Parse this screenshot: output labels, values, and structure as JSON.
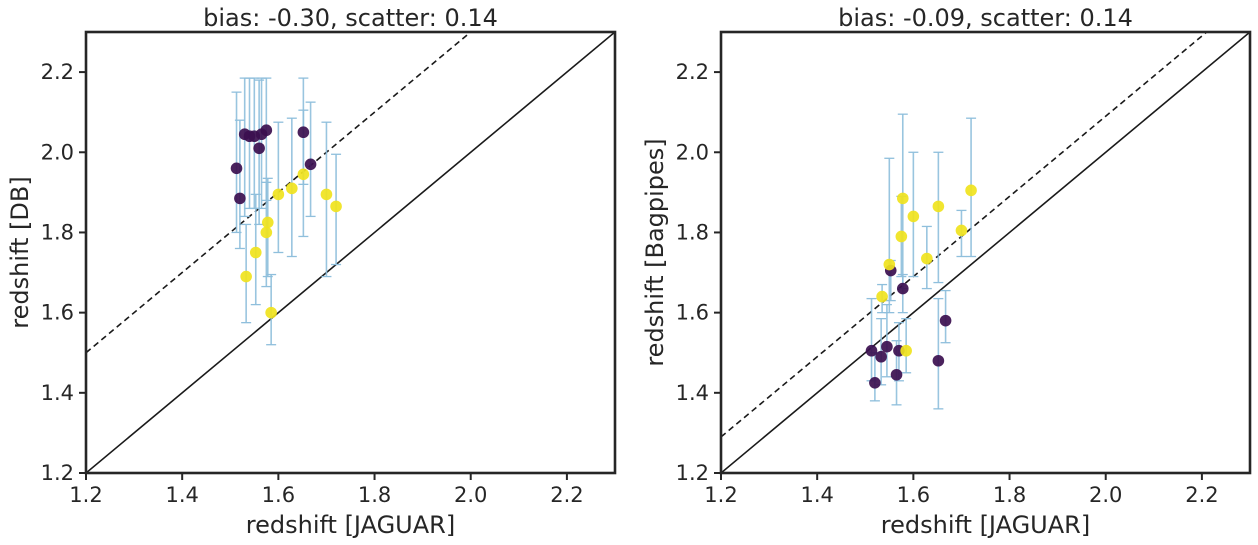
{
  "chart_data": [
    {
      "type": "scatter",
      "title": "bias: -0.30, scatter: 0.14",
      "xlabel": "redshift [JAGUAR]",
      "ylabel": "redshift [DB]",
      "xlim": [
        1.2,
        2.3
      ],
      "ylim": [
        1.2,
        2.3
      ],
      "xticks": [
        "1.2",
        "1.4",
        "1.6",
        "1.8",
        "2.0",
        "2.2"
      ],
      "yticks": [
        "1.2",
        "1.4",
        "1.6",
        "1.8",
        "2.0",
        "2.2"
      ],
      "grid": false,
      "reference_lines": [
        {
          "style": "solid",
          "color": "#1a1a1a",
          "slope": 1,
          "intercept": 0
        },
        {
          "style": "dashed",
          "color": "#1a1a1a",
          "slope": 1,
          "intercept": 0.3
        }
      ],
      "series": [
        {
          "color": "#3b0f4f",
          "points": [
            {
              "x": 1.513,
              "y": 1.96,
              "lo": 1.8,
              "hi": 2.15
            },
            {
              "x": 1.52,
              "y": 1.885,
              "lo": 1.76,
              "hi": 2.08
            },
            {
              "x": 1.53,
              "y": 2.045,
              "lo": 1.84,
              "hi": 2.185
            },
            {
              "x": 1.54,
              "y": 2.04,
              "lo": 1.86,
              "hi": 2.185
            },
            {
              "x": 1.55,
              "y": 2.04,
              "lo": 1.86,
              "hi": 2.185
            },
            {
              "x": 1.56,
              "y": 2.01,
              "lo": 1.82,
              "hi": 2.18
            },
            {
              "x": 1.565,
              "y": 2.045,
              "lo": 1.86,
              "hi": 2.185
            },
            {
              "x": 1.575,
              "y": 2.055,
              "lo": 1.88,
              "hi": 2.185
            },
            {
              "x": 1.652,
              "y": 2.05,
              "lo": 1.92,
              "hi": 2.185
            },
            {
              "x": 1.667,
              "y": 1.97,
              "lo": 1.84,
              "hi": 2.125
            }
          ]
        },
        {
          "color": "#f0e31d",
          "points": [
            {
              "x": 1.533,
              "y": 1.69,
              "lo": 1.575,
              "hi": 1.82
            },
            {
              "x": 1.553,
              "y": 1.75,
              "lo": 1.62,
              "hi": 1.895
            },
            {
              "x": 1.575,
              "y": 1.8,
              "lo": 1.665,
              "hi": 1.925
            },
            {
              "x": 1.578,
              "y": 1.825,
              "lo": 1.69,
              "hi": 1.935
            },
            {
              "x": 1.585,
              "y": 1.6,
              "lo": 1.52,
              "hi": 1.695
            },
            {
              "x": 1.6,
              "y": 1.895,
              "lo": 1.75,
              "hi": 2.075
            },
            {
              "x": 1.628,
              "y": 1.91,
              "lo": 1.74,
              "hi": 2.085
            },
            {
              "x": 1.652,
              "y": 1.945,
              "lo": 1.79,
              "hi": 2.105
            },
            {
              "x": 1.7,
              "y": 1.895,
              "lo": 1.69,
              "hi": 2.075
            },
            {
              "x": 1.72,
              "y": 1.865,
              "lo": 1.72,
              "hi": 1.995
            }
          ]
        }
      ]
    },
    {
      "type": "scatter",
      "title": "bias: -0.09, scatter: 0.14",
      "xlabel": "redshift [JAGUAR]",
      "ylabel": "redshift [Bagpipes]",
      "xlim": [
        1.2,
        2.3
      ],
      "ylim": [
        1.2,
        2.3
      ],
      "xticks": [
        "1.2",
        "1.4",
        "1.6",
        "1.8",
        "2.0",
        "2.2"
      ],
      "yticks": [
        "1.2",
        "1.4",
        "1.6",
        "1.8",
        "2.0",
        "2.2"
      ],
      "grid": false,
      "reference_lines": [
        {
          "style": "solid",
          "color": "#1a1a1a",
          "slope": 1,
          "intercept": 0
        },
        {
          "style": "dashed",
          "color": "#1a1a1a",
          "slope": 1,
          "intercept": 0.09
        }
      ],
      "series": [
        {
          "color": "#3b0f4f",
          "points": [
            {
              "x": 1.513,
              "y": 1.505,
              "lo": 1.43,
              "hi": 1.635
            },
            {
              "x": 1.52,
              "y": 1.425,
              "lo": 1.38,
              "hi": 1.5
            },
            {
              "x": 1.533,
              "y": 1.49,
              "lo": 1.42,
              "hi": 1.585
            },
            {
              "x": 1.545,
              "y": 1.515,
              "lo": 1.44,
              "hi": 1.62
            },
            {
              "x": 1.553,
              "y": 1.705,
              "lo": 1.63,
              "hi": 1.73
            },
            {
              "x": 1.565,
              "y": 1.445,
              "lo": 1.37,
              "hi": 1.53
            },
            {
              "x": 1.57,
              "y": 1.505,
              "lo": 1.43,
              "hi": 1.575
            },
            {
              "x": 1.578,
              "y": 1.66,
              "lo": 1.6,
              "hi": 1.695
            },
            {
              "x": 1.652,
              "y": 1.48,
              "lo": 1.36,
              "hi": 1.635
            },
            {
              "x": 1.667,
              "y": 1.58,
              "lo": 1.525,
              "hi": 1.655
            }
          ]
        },
        {
          "color": "#f0e31d",
          "points": [
            {
              "x": 1.535,
              "y": 1.64,
              "lo": 1.6,
              "hi": 1.67
            },
            {
              "x": 1.55,
              "y": 1.72,
              "lo": 1.6,
              "hi": 1.985
            },
            {
              "x": 1.575,
              "y": 1.79,
              "lo": 1.69,
              "hi": 1.89
            },
            {
              "x": 1.578,
              "y": 1.885,
              "lo": 1.66,
              "hi": 2.095
            },
            {
              "x": 1.585,
              "y": 1.505,
              "lo": 1.45,
              "hi": 1.585
            },
            {
              "x": 1.6,
              "y": 1.84,
              "lo": 1.69,
              "hi": 2.0
            },
            {
              "x": 1.628,
              "y": 1.735,
              "lo": 1.66,
              "hi": 1.815
            },
            {
              "x": 1.652,
              "y": 1.865,
              "lo": 1.675,
              "hi": 2.0
            },
            {
              "x": 1.7,
              "y": 1.805,
              "lo": 1.74,
              "hi": 1.855
            },
            {
              "x": 1.72,
              "y": 1.905,
              "lo": 1.74,
              "hi": 2.085
            }
          ]
        }
      ]
    }
  ]
}
